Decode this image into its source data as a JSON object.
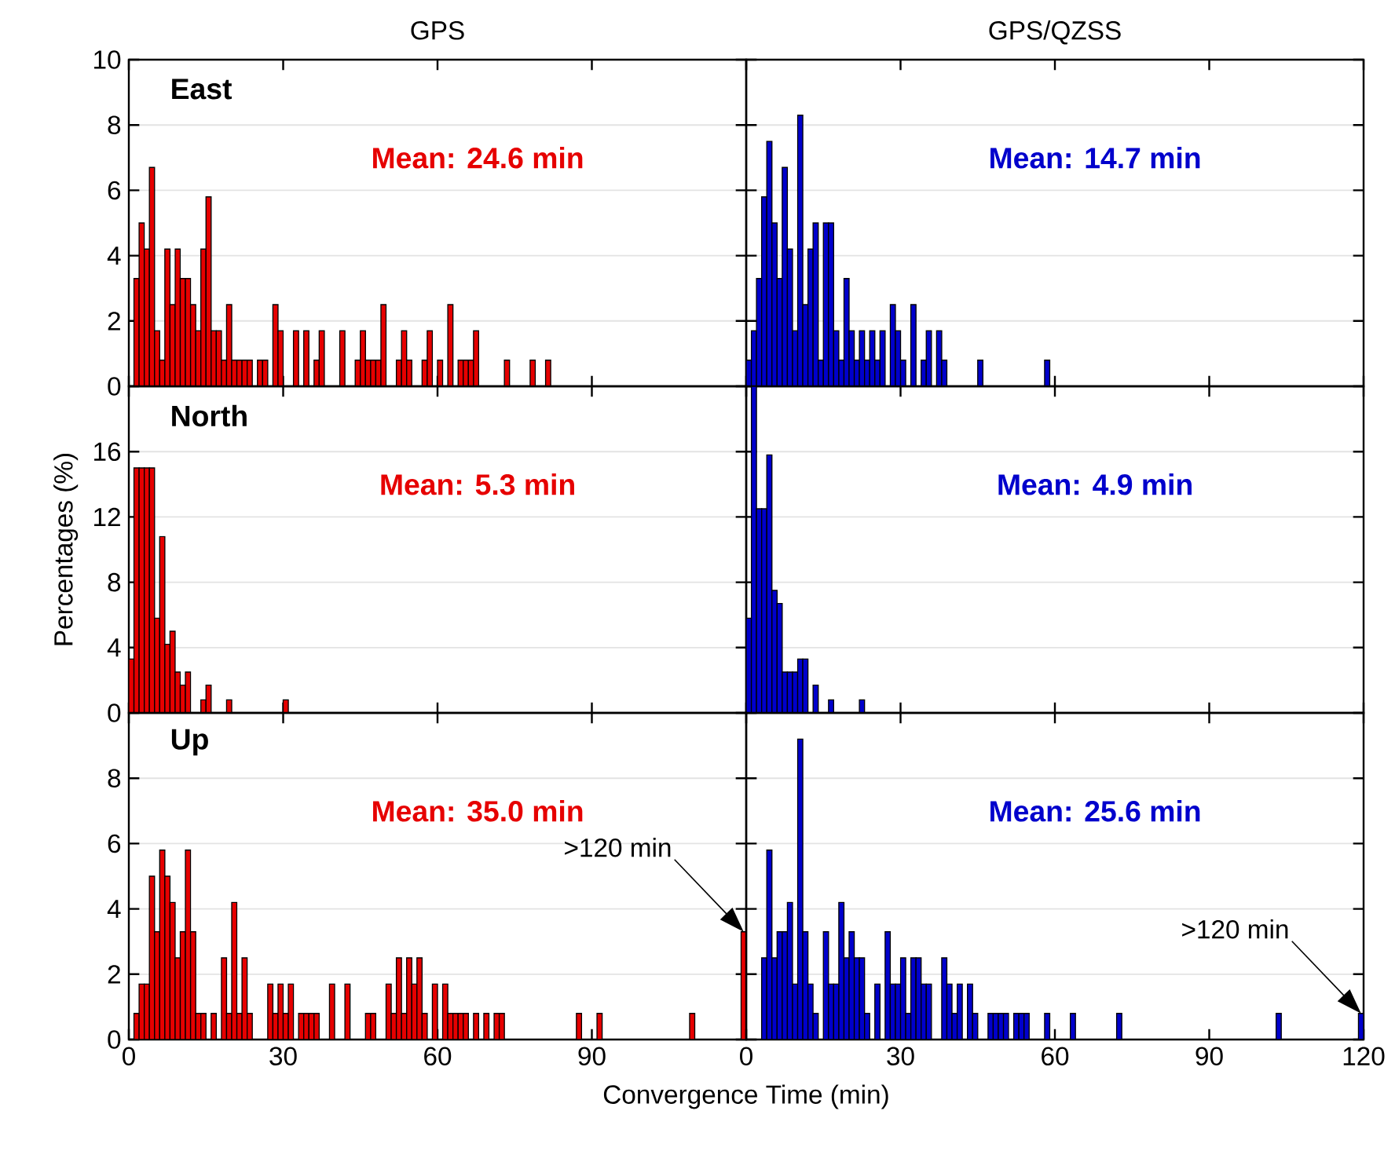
{
  "chart_data": [
    {
      "type": "histogram",
      "title": "GPS",
      "color": "#e60000",
      "xlim": [
        0,
        120
      ],
      "ylim": [
        0,
        10
      ],
      "xticks": [
        0,
        30,
        60,
        90
      ],
      "yticks": [
        0,
        2,
        4,
        6,
        8,
        10
      ],
      "grid": "y",
      "tick_labels": "y",
      "annotations": [
        "East",
        "Mean: 24.6 min"
      ],
      "bins": [
        0,
        1,
        2,
        3,
        4,
        5,
        6,
        7,
        8,
        9,
        10,
        11,
        12,
        13,
        14,
        15,
        16,
        17,
        18,
        19,
        20,
        21,
        22,
        23,
        24,
        25,
        26,
        27,
        28,
        29,
        30,
        31,
        32,
        33,
        34,
        35,
        36,
        37,
        38,
        39,
        40,
        41,
        42,
        43,
        44,
        45,
        46,
        47,
        48,
        49,
        50,
        51,
        52,
        53,
        54,
        55,
        56,
        57,
        58,
        59,
        60,
        61,
        62,
        63,
        64,
        65,
        66,
        67,
        68,
        69,
        70,
        71,
        72,
        73,
        74,
        75,
        76,
        77,
        78,
        79,
        80,
        81,
        82
      ],
      "values": [
        0,
        3.3,
        5,
        4.2,
        6.7,
        1.7,
        0.8,
        4.2,
        2.5,
        4.2,
        3.3,
        3.3,
        2.5,
        1.7,
        4.2,
        5.8,
        1.7,
        1.7,
        0.8,
        2.5,
        0.8,
        0.8,
        0.8,
        0.8,
        0,
        0.8,
        0.8,
        0,
        2.5,
        1.7,
        0,
        0,
        1.7,
        0,
        1.7,
        0,
        0.8,
        1.7,
        0,
        0,
        0,
        1.7,
        0,
        0,
        0.8,
        1.7,
        0.8,
        0.8,
        0.8,
        2.5,
        0,
        0,
        0.8,
        1.7,
        0.8,
        0,
        0,
        0.8,
        1.7,
        0,
        0.8,
        0,
        2.5,
        0,
        0.8,
        0.8,
        0.8,
        1.7,
        0,
        0,
        0,
        0,
        0,
        0.8,
        0,
        0,
        0,
        0,
        0.8,
        0,
        0,
        0.8
      ]
    },
    {
      "type": "histogram",
      "title": "GPS/QZSS",
      "color": "#0000cc",
      "xlim": [
        0,
        120
      ],
      "ylim": [
        0,
        10
      ],
      "xticks": [
        0,
        30,
        60,
        90,
        120
      ],
      "yticks": [
        0,
        2,
        4,
        6,
        8,
        10
      ],
      "grid": "y",
      "tick_labels": false,
      "annotations": [
        "Mean: 14.7 min"
      ],
      "bins": [
        0,
        1,
        2,
        3,
        4,
        5,
        6,
        7,
        8,
        9,
        10,
        11,
        12,
        13,
        14,
        15,
        16,
        17,
        18,
        19,
        20,
        21,
        22,
        23,
        24,
        25,
        26,
        27,
        28,
        29,
        30,
        31,
        32,
        33,
        34,
        35,
        36,
        37,
        38,
        39,
        40,
        41,
        42,
        43,
        44,
        45,
        46,
        47,
        48,
        49,
        50,
        51,
        52,
        53,
        54,
        55,
        56,
        57,
        58,
        59
      ],
      "values": [
        0.8,
        1.7,
        3.3,
        5.8,
        7.5,
        5,
        3.3,
        6.7,
        4.2,
        1.7,
        8.3,
        2.5,
        4.2,
        5,
        0.8,
        5,
        5,
        1.7,
        0.8,
        3.3,
        1.7,
        0.8,
        1.7,
        0.8,
        1.7,
        0.8,
        1.7,
        0,
        2.5,
        1.7,
        0.8,
        0,
        2.5,
        0,
        0.8,
        1.7,
        0,
        1.7,
        0.8,
        0,
        0,
        0,
        0,
        0,
        0,
        0.8,
        0,
        0,
        0,
        0,
        0,
        0,
        0,
        0,
        0,
        0,
        0,
        0,
        0.8
      ]
    },
    {
      "type": "histogram",
      "ylabel": "Percentages (%)",
      "color": "#e60000",
      "xlim": [
        0,
        120
      ],
      "ylim": [
        0,
        20
      ],
      "xticks": [
        0,
        30,
        60,
        90
      ],
      "yticks": [
        0,
        4,
        8,
        12,
        16
      ],
      "grid": "y",
      "tick_labels": "y",
      "annotations": [
        "North",
        "Mean: 5.3 min"
      ],
      "bins": [
        0,
        1,
        2,
        3,
        4,
        5,
        6,
        7,
        8,
        9,
        10,
        11,
        12,
        13,
        14,
        15,
        16,
        17,
        18,
        19,
        20,
        21,
        22,
        23,
        24,
        25,
        26,
        27,
        28,
        29,
        30,
        31
      ],
      "values": [
        3.3,
        15,
        15,
        15,
        15,
        5.8,
        10.8,
        4.2,
        5,
        2.5,
        1.7,
        2.5,
        0,
        0,
        0.8,
        1.7,
        0,
        0,
        0,
        0.8,
        0,
        0,
        0,
        0,
        0,
        0,
        0,
        0,
        0,
        0,
        0.8
      ]
    },
    {
      "type": "histogram",
      "color": "#0000cc",
      "xlim": [
        0,
        120
      ],
      "ylim": [
        0,
        20
      ],
      "xticks": [
        0,
        30,
        60,
        90,
        120
      ],
      "yticks": [
        0,
        4,
        8,
        12,
        16
      ],
      "grid": "y",
      "tick_labels": false,
      "annotations": [
        "Mean: 4.9 min"
      ],
      "bins": [
        0,
        1,
        2,
        3,
        4,
        5,
        6,
        7,
        8,
        9,
        10,
        11,
        12,
        13,
        14,
        15,
        16,
        17,
        18,
        19,
        20,
        21,
        22,
        23
      ],
      "values": [
        5.8,
        20,
        12.5,
        12.5,
        15.8,
        7.5,
        6.7,
        2.5,
        2.5,
        2.5,
        3.3,
        3.3,
        0,
        1.7,
        0,
        0,
        0.8,
        0,
        0,
        0,
        0,
        0,
        0.8
      ]
    },
    {
      "type": "histogram",
      "xlabel": "Convergence Time (min)",
      "color": "#e60000",
      "xlim": [
        0,
        120
      ],
      "ylim": [
        0,
        10
      ],
      "xticks": [
        0,
        30,
        60,
        90
      ],
      "yticks": [
        0,
        2,
        4,
        6,
        8
      ],
      "grid": "y",
      "annotations": [
        "Up",
        "Mean: 35.0 min",
        ">120 min"
      ],
      "bins": [
        0,
        1,
        2,
        3,
        4,
        5,
        6,
        7,
        8,
        9,
        10,
        11,
        12,
        13,
        14,
        15,
        16,
        17,
        18,
        19,
        20,
        21,
        22,
        23,
        24,
        25,
        26,
        27,
        28,
        29,
        30,
        31,
        32,
        33,
        34,
        35,
        36,
        37,
        38,
        39,
        40,
        41,
        42,
        43,
        44,
        45,
        46,
        47,
        48,
        49,
        50,
        51,
        52,
        53,
        54,
        55,
        56,
        57,
        58,
        59,
        60,
        61,
        62,
        63,
        64,
        65,
        66,
        67,
        68,
        69,
        70,
        71,
        72,
        73,
        74,
        75,
        76,
        77,
        78,
        79,
        80,
        81,
        82,
        83,
        84,
        85,
        86,
        87,
        88,
        89,
        90,
        91,
        92,
        93,
        94,
        95,
        96,
        97,
        98,
        99,
        100,
        101,
        102,
        103,
        104,
        105,
        106,
        107,
        108,
        109,
        110,
        111,
        112,
        113,
        114,
        115,
        116,
        117,
        118,
        119,
        120
      ],
      "values": [
        0,
        0.8,
        1.7,
        1.7,
        5,
        3.3,
        5.8,
        5,
        4.2,
        2.5,
        3.3,
        5.8,
        3.3,
        0.8,
        0.8,
        0,
        0.8,
        0,
        2.5,
        0.8,
        4.2,
        0.8,
        2.5,
        0.8,
        0,
        0,
        0,
        1.7,
        0.8,
        1.7,
        0.8,
        1.7,
        0,
        0.8,
        0.8,
        0.8,
        0.8,
        0,
        0,
        1.7,
        0,
        0,
        1.7,
        0,
        0,
        0,
        0.8,
        0.8,
        0,
        0,
        1.7,
        0.8,
        2.5,
        0.8,
        2.5,
        1.7,
        2.5,
        0.8,
        0,
        1.7,
        0,
        1.7,
        0.8,
        0.8,
        0.8,
        0.8,
        0,
        0.8,
        0,
        0.8,
        0,
        0.8,
        0.8,
        0,
        0,
        0,
        0,
        0,
        0,
        0,
        0,
        0,
        0,
        0,
        0,
        0,
        0,
        0.8,
        0,
        0,
        0,
        0.8,
        0,
        0,
        0,
        0,
        0,
        0,
        0,
        0,
        0,
        0,
        0,
        0,
        0,
        0,
        0,
        0,
        0,
        0.8,
        0,
        0,
        0,
        0,
        0,
        0,
        0,
        0,
        0,
        3.3
      ]
    },
    {
      "type": "histogram",
      "color": "#0000cc",
      "xlim": [
        0,
        120
      ],
      "ylim": [
        0,
        10
      ],
      "xticks": [
        0,
        30,
        60,
        90,
        120
      ],
      "yticks": [
        0,
        2,
        4,
        6,
        8
      ],
      "grid": "y",
      "tick_labels": "x",
      "annotations": [
        "Mean: 25.6 min",
        ">120 min"
      ],
      "bins": [
        0,
        1,
        2,
        3,
        4,
        5,
        6,
        7,
        8,
        9,
        10,
        11,
        12,
        13,
        14,
        15,
        16,
        17,
        18,
        19,
        20,
        21,
        22,
        23,
        24,
        25,
        26,
        27,
        28,
        29,
        30,
        31,
        32,
        33,
        34,
        35,
        36,
        37,
        38,
        39,
        40,
        41,
        42,
        43,
        44,
        45,
        46,
        47,
        48,
        49,
        50,
        51,
        52,
        53,
        54,
        55,
        56,
        57,
        58,
        59,
        60,
        61,
        62,
        63,
        64,
        65,
        66,
        67,
        68,
        69,
        70,
        71,
        72,
        73,
        74,
        75,
        76,
        77,
        78,
        79,
        80,
        81,
        82,
        83,
        84,
        85,
        86,
        87,
        88,
        89,
        90,
        91,
        92,
        93,
        94,
        95,
        96,
        97,
        98,
        99,
        100,
        101,
        102,
        103,
        104,
        105,
        106,
        107,
        108,
        109,
        110,
        111,
        112,
        113,
        114,
        115,
        116,
        117,
        118,
        119,
        120
      ],
      "values": [
        0,
        0,
        0,
        2.5,
        5.8,
        2.5,
        3.3,
        3.3,
        4.2,
        1.7,
        9.2,
        3.3,
        1.7,
        0.8,
        0,
        3.3,
        1.7,
        1.7,
        4.2,
        2.5,
        3.3,
        2.5,
        2.5,
        0.8,
        0,
        1.7,
        0,
        3.3,
        1.7,
        1.7,
        2.5,
        0.8,
        2.5,
        2.5,
        1.7,
        1.7,
        0,
        0,
        2.5,
        1.7,
        0.8,
        1.7,
        0,
        1.7,
        0.8,
        0,
        0,
        0.8,
        0.8,
        0.8,
        0.8,
        0,
        0.8,
        0.8,
        0.8,
        0,
        0,
        0,
        0.8,
        0,
        0,
        0,
        0,
        0.8,
        0,
        0,
        0,
        0,
        0,
        0,
        0,
        0,
        0.8,
        0,
        0,
        0,
        0,
        0,
        0,
        0,
        0,
        0,
        0,
        0,
        0,
        0,
        0,
        0,
        0,
        0,
        0,
        0,
        0,
        0,
        0,
        0,
        0,
        0,
        0,
        0,
        0,
        0,
        0,
        0.8,
        0,
        0,
        0,
        0,
        0,
        0,
        0,
        0,
        0,
        0,
        0,
        0,
        0,
        0,
        0,
        0.8
      ]
    }
  ]
}
